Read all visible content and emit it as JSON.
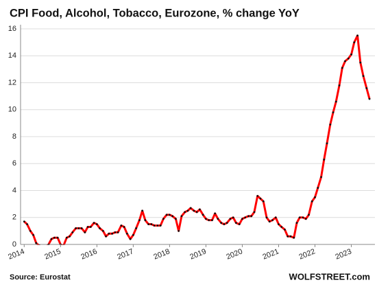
{
  "chart_data": {
    "type": "line",
    "title": "CPI Food, Alcohol, Tobacco, Eurozone, % change YoY",
    "source": "Source: Eurostat",
    "brand": "WOLFSTREET.com",
    "x": [
      2014,
      2014.08,
      2014.17,
      2014.25,
      2014.33,
      2014.42,
      2014.5,
      2014.58,
      2014.67,
      2014.75,
      2014.83,
      2014.92,
      2015,
      2015.08,
      2015.17,
      2015.25,
      2015.33,
      2015.42,
      2015.5,
      2015.58,
      2015.67,
      2015.75,
      2015.83,
      2015.92,
      2016,
      2016.08,
      2016.17,
      2016.25,
      2016.33,
      2016.42,
      2016.5,
      2016.58,
      2016.67,
      2016.75,
      2016.83,
      2016.92,
      2017,
      2017.08,
      2017.17,
      2017.25,
      2017.33,
      2017.42,
      2017.5,
      2017.58,
      2017.67,
      2017.75,
      2017.83,
      2017.92,
      2018,
      2018.08,
      2018.17,
      2018.25,
      2018.33,
      2018.42,
      2018.5,
      2018.58,
      2018.67,
      2018.75,
      2018.83,
      2018.92,
      2019,
      2019.08,
      2019.17,
      2019.25,
      2019.33,
      2019.42,
      2019.5,
      2019.58,
      2019.67,
      2019.75,
      2019.83,
      2019.92,
      2020,
      2020.08,
      2020.17,
      2020.25,
      2020.33,
      2020.42,
      2020.5,
      2020.58,
      2020.67,
      2020.75,
      2020.83,
      2020.92,
      2021,
      2021.08,
      2021.17,
      2021.25,
      2021.33,
      2021.42,
      2021.5,
      2021.58,
      2021.67,
      2021.75,
      2021.83,
      2021.92,
      2022,
      2022.08,
      2022.17,
      2022.25,
      2022.33,
      2022.42,
      2022.5,
      2022.58,
      2022.67,
      2022.75,
      2022.83,
      2022.92,
      2023,
      2023.08,
      2023.17,
      2023.25,
      2023.33,
      2023.42,
      2023.5
    ],
    "series": [
      {
        "name": "CPI Food, Alcohol, Tobacco",
        "color": "#ff0000",
        "marker_color": "#111111",
        "values": [
          1.7,
          1.5,
          1.0,
          0.7,
          0.1,
          -0.1,
          -0.3,
          -0.3,
          0.0,
          0.4,
          0.5,
          0.5,
          0.0,
          -0.1,
          0.5,
          0.6,
          0.9,
          1.2,
          1.2,
          1.2,
          0.9,
          1.3,
          1.3,
          1.6,
          1.5,
          1.2,
          1.0,
          0.6,
          0.8,
          0.8,
          0.9,
          0.9,
          1.4,
          1.3,
          0.8,
          0.4,
          0.7,
          1.2,
          1.8,
          2.5,
          1.8,
          1.5,
          1.5,
          1.4,
          1.4,
          1.4,
          1.9,
          2.2,
          2.2,
          2.1,
          1.9,
          1.0,
          2.1,
          2.4,
          2.5,
          2.7,
          2.5,
          2.4,
          2.6,
          2.2,
          1.9,
          1.8,
          1.8,
          2.3,
          1.9,
          1.6,
          1.5,
          1.6,
          1.9,
          2.0,
          1.6,
          1.5,
          1.9,
          2.0,
          2.1,
          2.1,
          2.4,
          3.6,
          3.4,
          3.2,
          2.0,
          1.7,
          1.8,
          2.0,
          1.5,
          1.3,
          1.1,
          0.6,
          0.6,
          0.5,
          1.6,
          2.0,
          2.0,
          1.9,
          2.2,
          3.2,
          3.5,
          4.2,
          5.0,
          6.3,
          7.5,
          8.9,
          9.8,
          10.6,
          11.8,
          13.1,
          13.6,
          13.8,
          14.1,
          15.0,
          15.5,
          13.5,
          12.5,
          11.6,
          10.8
        ]
      }
    ],
    "xlim": [
      2013.9,
      2023.65
    ],
    "xticks": [
      2014,
      2015,
      2016,
      2017,
      2018,
      2019,
      2020,
      2021,
      2022,
      2023
    ],
    "ylim": [
      0,
      16
    ],
    "yticks": [
      0,
      2,
      4,
      6,
      8,
      10,
      12,
      14,
      16
    ],
    "grid": true
  }
}
